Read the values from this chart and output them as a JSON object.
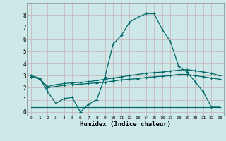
{
  "xlabel": "Humidex (Indice chaleur)",
  "xlim": [
    -0.5,
    23.5
  ],
  "ylim": [
    -0.3,
    9.0
  ],
  "xticks": [
    0,
    1,
    2,
    3,
    4,
    5,
    6,
    7,
    8,
    9,
    10,
    11,
    12,
    13,
    14,
    15,
    16,
    17,
    18,
    19,
    20,
    21,
    22,
    23
  ],
  "yticks": [
    0,
    1,
    2,
    3,
    4,
    5,
    6,
    7,
    8
  ],
  "bg_color": "#cce8e8",
  "grid_color": "#c8b0b0",
  "line_color": "#006868",
  "line1_x": [
    0,
    1,
    2,
    3,
    4,
    5,
    6,
    7,
    8,
    9,
    10,
    11,
    12,
    13,
    14,
    15,
    16,
    17,
    18,
    19,
    20,
    21,
    22,
    23
  ],
  "line1_y": [
    3.0,
    2.8,
    1.7,
    0.7,
    1.1,
    1.2,
    0.0,
    0.65,
    1.0,
    2.9,
    5.6,
    6.3,
    7.4,
    7.8,
    8.1,
    8.1,
    6.8,
    5.8,
    3.75,
    3.3,
    2.5,
    1.65,
    0.4,
    0.4
  ],
  "line2_x": [
    0,
    1,
    2,
    3,
    4,
    5,
    6,
    7,
    8,
    9,
    10,
    11,
    12,
    13,
    14,
    15,
    16,
    17,
    18,
    19,
    20,
    21,
    22,
    23
  ],
  "line2_y": [
    2.9,
    2.75,
    2.1,
    2.25,
    2.35,
    2.4,
    2.45,
    2.5,
    2.6,
    2.7,
    2.8,
    2.9,
    3.0,
    3.1,
    3.2,
    3.25,
    3.3,
    3.38,
    3.45,
    3.5,
    3.4,
    3.3,
    3.2,
    3.0
  ],
  "line3_x": [
    0,
    1,
    2,
    3,
    4,
    5,
    6,
    7,
    8,
    9,
    10,
    11,
    12,
    13,
    14,
    15,
    16,
    17,
    18,
    19,
    20,
    21,
    22,
    23
  ],
  "line3_y": [
    2.9,
    2.75,
    2.0,
    2.1,
    2.2,
    2.25,
    2.3,
    2.35,
    2.4,
    2.45,
    2.55,
    2.65,
    2.7,
    2.75,
    2.85,
    2.9,
    2.95,
    3.0,
    3.1,
    3.1,
    3.0,
    2.9,
    2.8,
    2.7
  ],
  "line4_x": [
    0,
    1,
    9,
    18,
    22,
    23
  ],
  "line4_y": [
    0.4,
    0.4,
    0.4,
    0.4,
    0.4,
    0.4
  ]
}
